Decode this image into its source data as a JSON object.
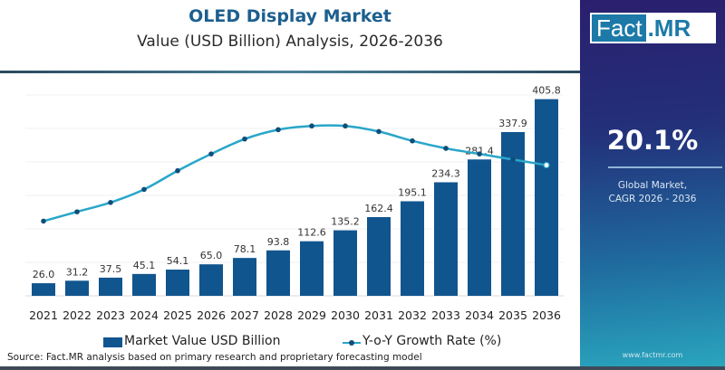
{
  "header": {
    "title": "OLED Display Market",
    "subtitle": "Value (USD Billion) Analysis, 2026-2036"
  },
  "brand": {
    "logo_left": "Fact",
    "logo_right": ".MR",
    "website": "www.factmr.com"
  },
  "highlight": {
    "cagr_value": "20.1%",
    "cagr_label_line1": "Global Market,",
    "cagr_label_line2": "CAGR 2026 - 2036"
  },
  "legend": {
    "bar_label": "Market Value USD Billion",
    "line_label": "Y-o-Y Growth Rate (%)"
  },
  "source": "Source: Fact.MR analysis based on primary research and proprietary forecasting model",
  "colors": {
    "bar": "#11558f",
    "line": "#29a6c9",
    "marker": "#0f4e7a",
    "title": "#1c5f8f"
  },
  "chart_data": {
    "type": "bar",
    "title": "OLED Display Market",
    "subtitle": "Value (USD Billion) Analysis, 2026-2036",
    "xlabel": "",
    "ylabel": "",
    "categories": [
      "2021",
      "2022",
      "2023",
      "2024",
      "2025",
      "2026",
      "2027",
      "2028",
      "2029",
      "2030",
      "2031",
      "2032",
      "2033",
      "2034",
      "2035",
      "2036"
    ],
    "series": [
      {
        "name": "Market Value USD Billion",
        "type": "bar",
        "values": [
          26.0,
          31.2,
          37.5,
          45.1,
          54.1,
          65.0,
          78.1,
          93.8,
          112.6,
          135.2,
          162.4,
          195.1,
          234.3,
          281.4,
          337.9,
          405.8
        ],
        "labels": [
          "26.0",
          "31.2",
          "37.5",
          "45.1",
          "54.1",
          "65.0",
          "78.1",
          "93.8",
          "112.6",
          "135.2",
          "162.4",
          "195.1",
          "234.3",
          "281.4",
          "337.9",
          "405.8"
        ]
      },
      {
        "name": "Y-o-Y Growth Rate (%)",
        "type": "line",
        "note": "secondary axis not labeled; values estimated relative shape",
        "values": [
          18.0,
          18.5,
          19.0,
          19.7,
          20.7,
          21.6,
          22.4,
          22.9,
          23.1,
          23.1,
          22.8,
          22.3,
          21.9,
          21.6,
          21.3,
          21.0
        ]
      }
    ],
    "ylim": [
      0,
      420
    ],
    "y2lim": [
      14,
      25
    ],
    "grid": true,
    "legend_position": "bottom"
  }
}
